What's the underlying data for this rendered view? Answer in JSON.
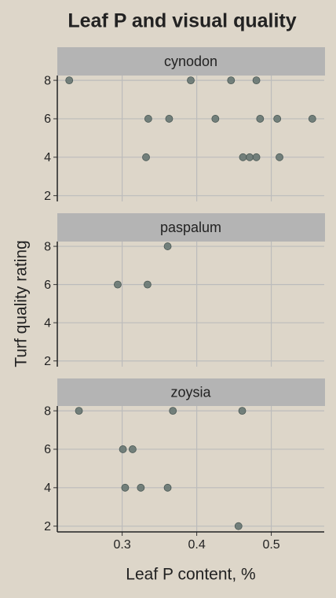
{
  "title": "Leaf P and visual quality",
  "x_label": "Leaf P content, %",
  "y_label": "Turf quality rating",
  "chart_data": [
    {
      "type": "scatter",
      "facet": "cynodon",
      "color": "#60716d",
      "x": [
        0.229,
        0.392,
        0.446,
        0.48,
        0.335,
        0.363,
        0.425,
        0.485,
        0.508,
        0.555,
        0.332,
        0.462,
        0.471,
        0.48,
        0.511
      ],
      "y": [
        8,
        8,
        8,
        8,
        6,
        6,
        6,
        6,
        6,
        6,
        4,
        4,
        4,
        4,
        4
      ],
      "xlim": [
        0.213,
        0.571
      ],
      "ylim": [
        1.7,
        8.25
      ],
      "xticks": [
        0.3,
        0.4,
        0.5
      ],
      "yticks": [
        2,
        4,
        6,
        8
      ],
      "grid": true
    },
    {
      "type": "scatter",
      "facet": "paspalum",
      "color": "#60716d",
      "x": [
        0.361,
        0.294,
        0.334
      ],
      "y": [
        8,
        6,
        6
      ],
      "xlim": [
        0.213,
        0.571
      ],
      "ylim": [
        1.7,
        8.25
      ],
      "xticks": [
        0.3,
        0.4,
        0.5
      ],
      "yticks": [
        2,
        4,
        6,
        8
      ],
      "grid": true
    },
    {
      "type": "scatter",
      "facet": "zoysia",
      "color": "#60716d",
      "x": [
        0.242,
        0.368,
        0.461,
        0.301,
        0.314,
        0.304,
        0.325,
        0.361,
        0.456
      ],
      "y": [
        8,
        8,
        8,
        6,
        6,
        4,
        4,
        4,
        2
      ],
      "xlim": [
        0.213,
        0.571
      ],
      "ylim": [
        1.7,
        8.25
      ],
      "xticks": [
        0.3,
        0.4,
        0.5
      ],
      "yticks": [
        2,
        4,
        6,
        8
      ],
      "grid": true
    }
  ]
}
